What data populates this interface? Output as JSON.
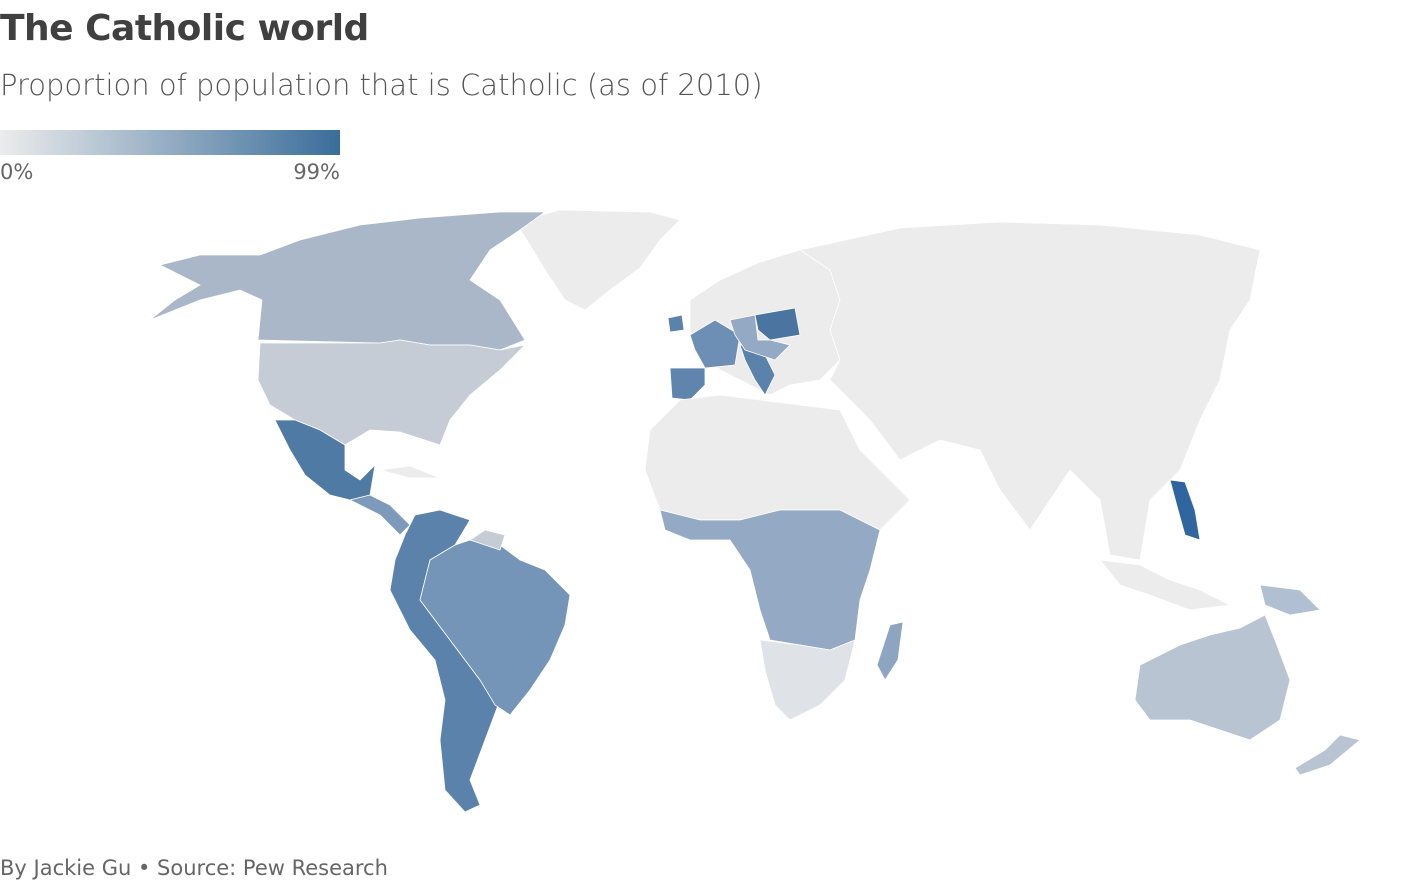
{
  "header": {
    "title": "The Catholic world",
    "subtitle": "Proportion of population that is Catholic (as of 2010)"
  },
  "legend": {
    "labels": [
      "0%",
      "99%"
    ],
    "colors": [
      "#ececec",
      "#3a6d9a"
    ]
  },
  "footer": {
    "credit": "By Jackie Gu • Source: Pew Research"
  }
}
